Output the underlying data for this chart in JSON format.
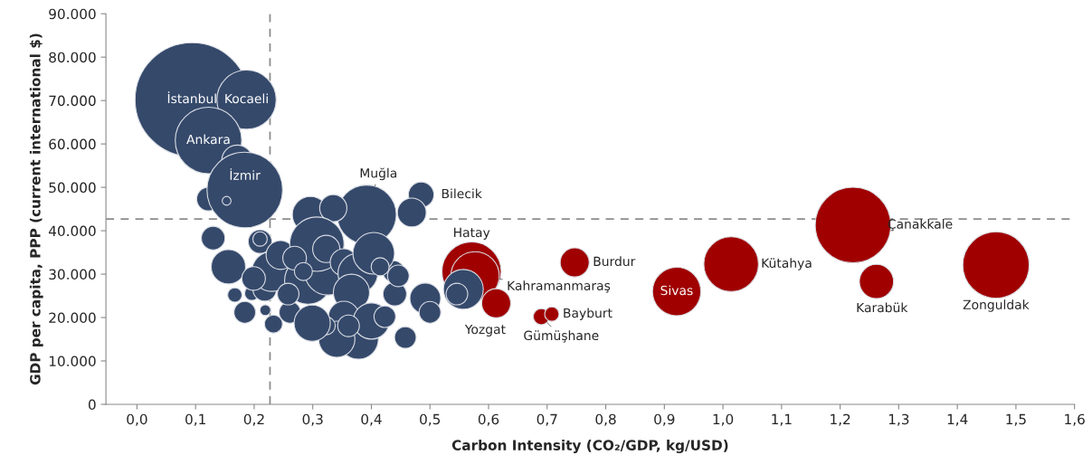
{
  "chart_data": {
    "type": "bubble",
    "xlabel": "Carbon Intensity (CO₂/GDP, kg/USD)",
    "ylabel": "GDP per capita, PPP (current international $)",
    "xlim": [
      -0.053,
      1.6
    ],
    "xticks": [
      {
        "value": 0.0,
        "label": "0,0"
      },
      {
        "value": 0.1,
        "label": "0,1"
      },
      {
        "value": 0.2,
        "label": "0,2"
      },
      {
        "value": 0.3,
        "label": "0,3"
      },
      {
        "value": 0.4,
        "label": "0,4"
      },
      {
        "value": 0.5,
        "label": "0,5"
      },
      {
        "value": 0.6,
        "label": "0,6"
      },
      {
        "value": 0.7,
        "label": "0,7"
      },
      {
        "value": 0.8,
        "label": "0,8"
      },
      {
        "value": 0.9,
        "label": "0,9"
      },
      {
        "value": 1.0,
        "label": "1,0"
      },
      {
        "value": 1.1,
        "label": "1,1"
      },
      {
        "value": 1.2,
        "label": "1,2"
      },
      {
        "value": 1.3,
        "label": "1,3"
      },
      {
        "value": 1.4,
        "label": "1,4"
      },
      {
        "value": 1.5,
        "label": "1,5"
      },
      {
        "value": 1.6,
        "label": "1,6"
      }
    ],
    "ylim": [
      0,
      90000
    ],
    "yticks": [
      0,
      {
        "value": 10000,
        "label": "10.000"
      },
      {
        "value": 20000,
        "label": "20.000"
      },
      {
        "value": 30000,
        "label": "30.000"
      },
      {
        "value": 40000,
        "label": "40.000"
      },
      {
        "value": 50000,
        "label": "50.000"
      },
      {
        "value": 60000,
        "label": "60.000"
      },
      {
        "value": 70000,
        "label": "70.000"
      },
      {
        "value": 80000,
        "label": "80.000"
      },
      {
        "value": 90000,
        "label": "90.000"
      }
    ],
    "grid": false,
    "legend": false,
    "ref_lines": [
      {
        "axis": "x",
        "value": 0.227,
        "color": "#8c8c8c",
        "line_style": "dashed"
      },
      {
        "axis": "y",
        "value": 42700,
        "color": "#8c8c8c",
        "line_style": "dashed"
      }
    ],
    "series": [
      {
        "color": "#a00000",
        "x": [
          0.571,
          0.577,
          0.613,
          0.747,
          0.69,
          0.708,
          0.921,
          1.014,
          1.222,
          1.262,
          1.466
        ],
        "values": [
          30600,
          29600,
          23300,
          32700,
          20200,
          20800,
          26000,
          32300,
          41300,
          28300,
          32100
        ],
        "sizes": [
          0.27,
          0.18,
          0.065,
          0.065,
          0.02,
          0.016,
          0.18,
          0.23,
          0.44,
          0.09,
          0.34
        ]
      },
      {
        "color": "#35496b",
        "x": [
          0.094,
          0.187,
          0.122,
          0.171,
          0.122,
          0.184,
          0.153,
          0.392,
          0.485,
          0.469,
          0.13,
          0.156,
          0.167,
          0.196,
          0.219,
          0.233,
          0.21,
          0.21,
          0.218,
          0.23,
          0.245,
          0.199,
          0.296,
          0.335,
          0.292,
          0.326,
          0.307,
          0.323,
          0.353,
          0.377,
          0.366,
          0.353,
          0.378,
          0.4,
          0.423,
          0.44,
          0.438,
          0.404,
          0.415,
          0.446,
          0.492,
          0.5,
          0.557,
          0.546,
          0.458,
          0.341,
          0.361,
          0.323,
          0.269,
          0.284,
          0.261,
          0.299,
          0.184,
          0.258
        ],
        "values": [
          70200,
          70200,
          60800,
          56200,
          47300,
          49400,
          46900,
          43700,
          48300,
          44200,
          38300,
          31700,
          25200,
          25600,
          21700,
          18500,
          37500,
          38100,
          26500,
          30600,
          34400,
          29000,
          43700,
          45200,
          28500,
          30600,
          36900,
          35800,
          32700,
          30200,
          25800,
          20200,
          15000,
          19200,
          20200,
          25400,
          30600,
          34800,
          31700,
          29600,
          24400,
          21200,
          26500,
          25400,
          15400,
          15000,
          18100,
          18100,
          33700,
          30600,
          21200,
          18700,
          21200,
          25400
        ],
        "sizes": [
          1,
          0.27,
          0.34,
          0.073,
          0.043,
          0.44,
          0.006,
          0.27,
          0.05,
          0.064,
          0.043,
          0.091,
          0.016,
          0.016,
          0.009,
          0.025,
          0.043,
          0.016,
          0.043,
          0.122,
          0.064,
          0.043,
          0.101,
          0.057,
          0.17,
          0.17,
          0.227,
          0.057,
          0.057,
          0.122,
          0.101,
          0.073,
          0.122,
          0.101,
          0.036,
          0.043,
          0.036,
          0.133,
          0.025,
          0.036,
          0.073,
          0.036,
          0.122,
          0.036,
          0.036,
          0.101,
          0.036,
          0.025,
          0.043,
          0.025,
          0.036,
          0.101,
          0.036,
          0.036
        ]
      }
    ],
    "annotations": [
      {
        "text": "İstanbul",
        "x": 0.094,
        "y": 70200
      },
      {
        "text": "Kocaeli",
        "x": 0.187,
        "y": 70200
      },
      {
        "text": "Ankara",
        "x": 0.122,
        "y": 60800
      },
      {
        "text": "İzmir",
        "x": 0.184,
        "y": 49400
      },
      {
        "text": "Muğla",
        "x": 0.392,
        "y": 43700
      },
      {
        "text": "Bilecik",
        "x": 0.485,
        "y": 48300
      },
      {
        "text": "Hatay",
        "x": 0.571,
        "y": 30600
      },
      {
        "text": "Kahramanmaraş",
        "x": 0.577,
        "y": 29600
      },
      {
        "text": "Yozgat",
        "x": 0.613,
        "y": 23300
      },
      {
        "text": "Burdur",
        "x": 0.747,
        "y": 32700
      },
      {
        "text": "Bayburt",
        "x": 0.708,
        "y": 20800
      },
      {
        "text": "Gümüşhane",
        "x": 0.69,
        "y": 20200
      },
      {
        "text": "Sivas",
        "x": 0.921,
        "y": 26000
      },
      {
        "text": "Kütahya",
        "x": 1.014,
        "y": 32300
      },
      {
        "text": "Çanakkale",
        "x": 1.222,
        "y": 41300
      },
      {
        "text": "Karabük",
        "x": 1.262,
        "y": 28300
      },
      {
        "text": "Zonguldak",
        "x": 1.466,
        "y": 32100
      }
    ]
  }
}
